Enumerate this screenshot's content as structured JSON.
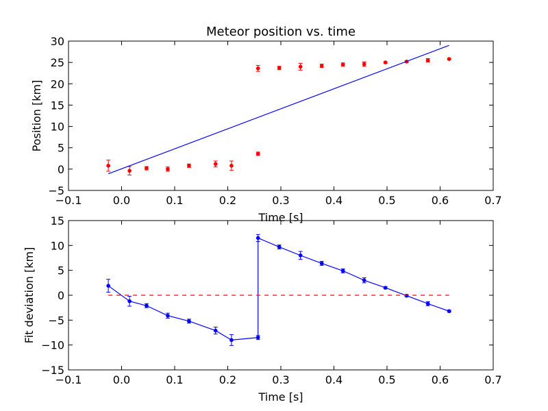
{
  "chart_data": [
    {
      "type": "scatter",
      "title": "Meteor position vs. time",
      "xlabel": "Time [s]",
      "ylabel": "Position [km]",
      "xlim": [
        -0.1,
        0.7
      ],
      "ylim": [
        -5,
        30
      ],
      "xticks": [
        "−0.1",
        "0.0",
        "0.1",
        "0.2",
        "0.3",
        "0.4",
        "0.5",
        "0.6",
        "0.7"
      ],
      "yticks": [
        "−5",
        "0",
        "5",
        "10",
        "15",
        "20",
        "25",
        "30"
      ],
      "xtick_values": [
        -0.1,
        0.0,
        0.1,
        0.2,
        0.3,
        0.4,
        0.5,
        0.6,
        0.7
      ],
      "ytick_values": [
        -5,
        0,
        5,
        10,
        15,
        20,
        25,
        30
      ],
      "grid": false,
      "series": [
        {
          "style": "points-with-errorbars",
          "color": "#ff0000",
          "x": [
            -0.025,
            0.015,
            0.047,
            0.087,
            0.127,
            0.177,
            0.207,
            0.257,
            0.257,
            0.297,
            0.337,
            0.377,
            0.417,
            0.457,
            0.497,
            0.537,
            0.577,
            0.617
          ],
          "y": [
            0.8,
            -0.4,
            0.2,
            0.0,
            0.8,
            1.2,
            0.8,
            3.6,
            23.6,
            23.7,
            24.0,
            24.2,
            24.5,
            24.6,
            25.0,
            25.2,
            25.5,
            25.8
          ],
          "yerr": [
            1.3,
            1.0,
            0.4,
            0.5,
            0.4,
            0.7,
            1.1,
            0.4,
            0.7,
            0.4,
            0.8,
            0.4,
            0.4,
            0.5,
            0.2,
            0.2,
            0.4,
            0.2
          ]
        },
        {
          "style": "line",
          "color": "#0000ff",
          "x": [
            -0.025,
            0.617
          ],
          "y": [
            -1.1,
            29.0
          ]
        }
      ]
    },
    {
      "type": "line",
      "title": "",
      "xlabel": "Time [s]",
      "ylabel": "Fit deviation [km]",
      "xlim": [
        -0.1,
        0.7
      ],
      "ylim": [
        -15,
        15
      ],
      "xticks": [
        "−0.1",
        "0.0",
        "0.1",
        "0.2",
        "0.3",
        "0.4",
        "0.5",
        "0.6",
        "0.7"
      ],
      "yticks": [
        "−15",
        "−10",
        "−5",
        "0",
        "5",
        "10",
        "15"
      ],
      "xtick_values": [
        -0.1,
        0.0,
        0.1,
        0.2,
        0.3,
        0.4,
        0.5,
        0.6,
        0.7
      ],
      "ytick_values": [
        -15,
        -10,
        -5,
        0,
        5,
        10,
        15
      ],
      "grid": false,
      "series": [
        {
          "style": "line-markers-errorbars",
          "color": "#0000ff",
          "x": [
            -0.025,
            0.015,
            0.047,
            0.087,
            0.127,
            0.177,
            0.207,
            0.257,
            0.257,
            0.297,
            0.337,
            0.377,
            0.417,
            0.457,
            0.497,
            0.537,
            0.577,
            0.617
          ],
          "y": [
            1.9,
            -1.2,
            -2.1,
            -4.1,
            -5.2,
            -7.1,
            -9.0,
            -8.5,
            11.5,
            9.7,
            8.0,
            6.4,
            4.9,
            3.0,
            1.5,
            -0.1,
            -1.7,
            -3.2
          ],
          "yerr": [
            1.3,
            1.0,
            0.4,
            0.5,
            0.4,
            0.7,
            1.1,
            0.4,
            0.7,
            0.4,
            0.8,
            0.4,
            0.4,
            0.5,
            0.2,
            0.2,
            0.4,
            0.2
          ]
        },
        {
          "style": "dashed-line",
          "color": "#ff0000",
          "x": [
            -0.025,
            0.617
          ],
          "y": [
            0,
            0
          ]
        }
      ]
    }
  ]
}
